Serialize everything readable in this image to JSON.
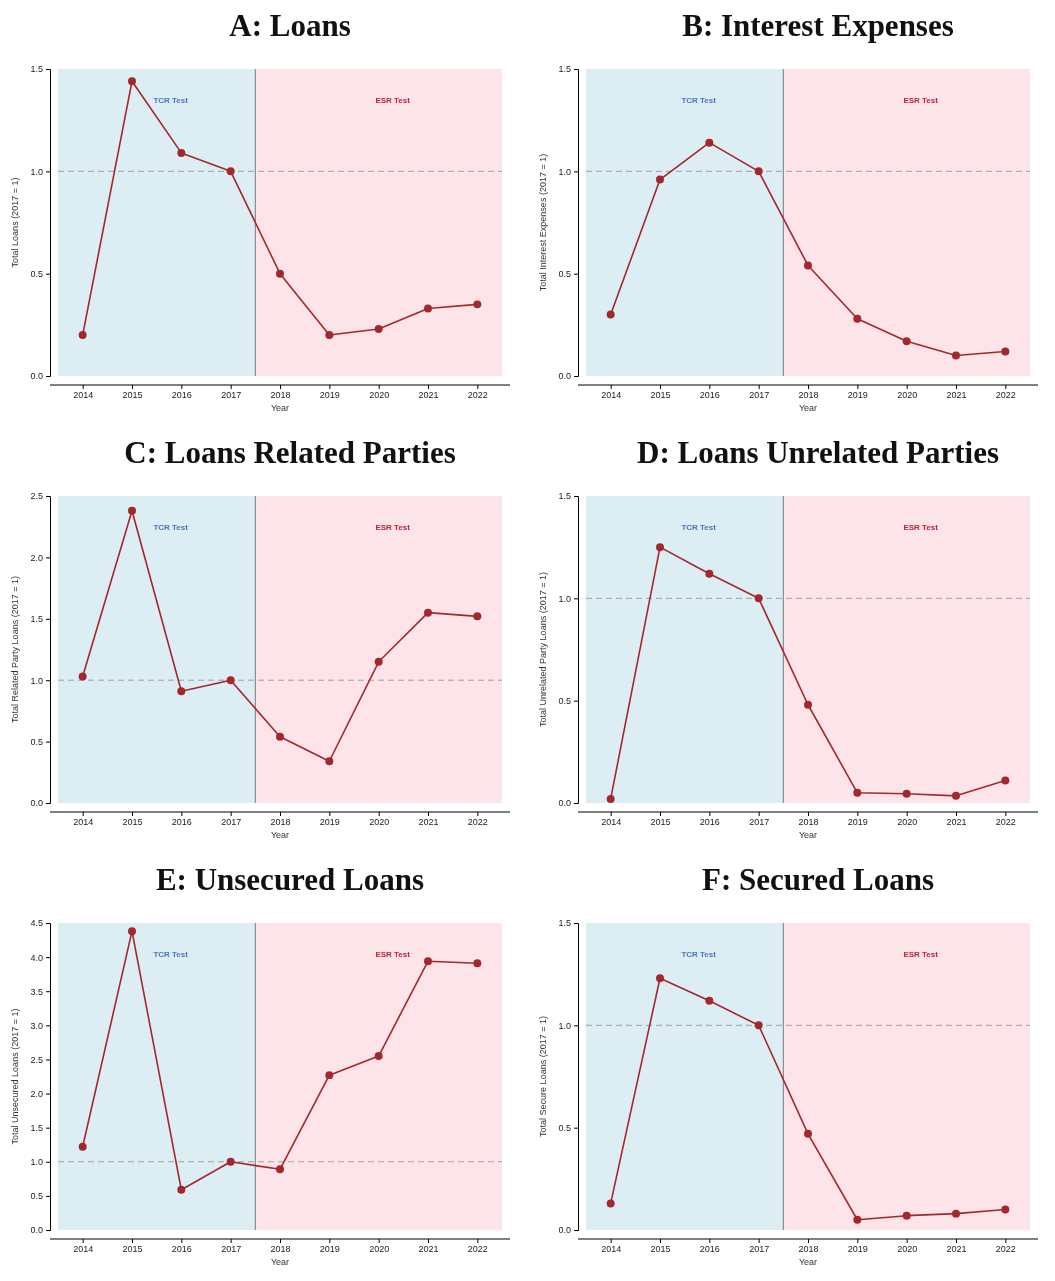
{
  "chart_data": [
    {
      "type": "line",
      "title": "A: Loans",
      "xlabel": "Year",
      "ylabel": "Total Loans (2017 = 1)",
      "x": [
        2014,
        2015,
        2016,
        2017,
        2018,
        2019,
        2020,
        2021,
        2022
      ],
      "xlim": [
        2013.5,
        2022.5
      ],
      "xticks": [
        2014,
        2015,
        2016,
        2017,
        2018,
        2019,
        2020,
        2021,
        2022
      ],
      "ylim": [
        0,
        1.5
      ],
      "yticks": [
        {
          "value": 0,
          "label": "0.0"
        },
        0.5,
        {
          "value": 1,
          "label": "1.0"
        },
        1.5
      ],
      "marker": "circle",
      "line_style": "solid",
      "series": [
        {
          "color": "#a3282c",
          "values": [
            0.2,
            1.44,
            1.09,
            1.0,
            0.5,
            0.2,
            0.23,
            0.33,
            0.35
          ]
        }
      ],
      "bands": [
        {
          "axis": "x",
          "from": 2013.5,
          "to": 2017.5,
          "label": "TCR Test",
          "color": "#ddedf4"
        },
        {
          "axis": "x",
          "from": 2017.5,
          "to": 2022.5,
          "label": "ESR Test",
          "color": "#fde4e9"
        }
      ],
      "ref_lines": [
        {
          "axis": "y",
          "value": 1,
          "color": "#a0a0a0",
          "line_style": "dashed"
        },
        {
          "axis": "x",
          "value": 2017.5,
          "color": "#7a7a7a",
          "line_style": "solid"
        }
      ]
    },
    {
      "type": "line",
      "title": "B: Interest Expenses",
      "xlabel": "Year",
      "ylabel": "Total Interest Expenses (2017 = 1)",
      "x": [
        2014,
        2015,
        2016,
        2017,
        2018,
        2019,
        2020,
        2021,
        2022
      ],
      "xlim": [
        2013.5,
        2022.5
      ],
      "xticks": [
        2014,
        2015,
        2016,
        2017,
        2018,
        2019,
        2020,
        2021,
        2022
      ],
      "ylim": [
        0,
        1.5
      ],
      "yticks": [
        {
          "value": 0,
          "label": "0.0"
        },
        0.5,
        {
          "value": 1,
          "label": "1.0"
        },
        1.5
      ],
      "marker": "circle",
      "line_style": "solid",
      "series": [
        {
          "color": "#a3282c",
          "values": [
            0.3,
            0.96,
            1.14,
            1.0,
            0.54,
            0.28,
            0.17,
            0.1,
            0.12
          ]
        }
      ],
      "bands": [
        {
          "axis": "x",
          "from": 2013.5,
          "to": 2017.5,
          "label": "TCR Test",
          "color": "#ddedf4"
        },
        {
          "axis": "x",
          "from": 2017.5,
          "to": 2022.5,
          "label": "ESR Test",
          "color": "#fde4e9"
        }
      ],
      "ref_lines": [
        {
          "axis": "y",
          "value": 1,
          "color": "#a0a0a0",
          "line_style": "dashed"
        },
        {
          "axis": "x",
          "value": 2017.5,
          "color": "#7a7a7a",
          "line_style": "solid"
        }
      ]
    },
    {
      "type": "line",
      "title": "C: Loans Related Parties",
      "xlabel": "Year",
      "ylabel": "Total Related Party Loans (2017 = 1)",
      "x": [
        2014,
        2015,
        2016,
        2017,
        2018,
        2019,
        2020,
        2021,
        2022
      ],
      "xlim": [
        2013.5,
        2022.5
      ],
      "xticks": [
        2014,
        2015,
        2016,
        2017,
        2018,
        2019,
        2020,
        2021,
        2022
      ],
      "ylim": [
        0,
        2.5
      ],
      "yticks": [
        {
          "value": 0,
          "label": "0.0"
        },
        0.5,
        {
          "value": 1,
          "label": "1.0"
        },
        1.5,
        {
          "value": 2,
          "label": "2.0"
        },
        2.5
      ],
      "marker": "circle",
      "line_style": "solid",
      "series": [
        {
          "color": "#a3282c",
          "values": [
            1.03,
            2.38,
            0.91,
            1.0,
            0.54,
            0.34,
            1.15,
            1.55,
            1.52
          ]
        }
      ],
      "bands": [
        {
          "axis": "x",
          "from": 2013.5,
          "to": 2017.5,
          "label": "TCR Test",
          "color": "#ddedf4"
        },
        {
          "axis": "x",
          "from": 2017.5,
          "to": 2022.5,
          "label": "ESR Test",
          "color": "#fde4e9"
        }
      ],
      "ref_lines": [
        {
          "axis": "y",
          "value": 1,
          "color": "#a0a0a0",
          "line_style": "dashed"
        },
        {
          "axis": "x",
          "value": 2017.5,
          "color": "#7a7a7a",
          "line_style": "solid"
        }
      ]
    },
    {
      "type": "line",
      "title": "D: Loans Unrelated Parties",
      "xlabel": "Year",
      "ylabel": "Total Unrelated Party Loans (2017 = 1)",
      "x": [
        2014,
        2015,
        2016,
        2017,
        2018,
        2019,
        2020,
        2021,
        2022
      ],
      "xlim": [
        2013.5,
        2022.5
      ],
      "xticks": [
        2014,
        2015,
        2016,
        2017,
        2018,
        2019,
        2020,
        2021,
        2022
      ],
      "ylim": [
        0,
        1.5
      ],
      "yticks": [
        {
          "value": 0,
          "label": "0.0"
        },
        0.5,
        {
          "value": 1,
          "label": "1.0"
        },
        1.5
      ],
      "marker": "circle",
      "line_style": "solid",
      "series": [
        {
          "color": "#a3282c",
          "values": [
            0.02,
            1.25,
            1.12,
            1.0,
            0.48,
            0.05,
            0.045,
            0.035,
            0.11
          ]
        }
      ],
      "bands": [
        {
          "axis": "x",
          "from": 2013.5,
          "to": 2017.5,
          "label": "TCR Test",
          "color": "#ddedf4"
        },
        {
          "axis": "x",
          "from": 2017.5,
          "to": 2022.5,
          "label": "ESR Test",
          "color": "#fde4e9"
        }
      ],
      "ref_lines": [
        {
          "axis": "y",
          "value": 1,
          "color": "#a0a0a0",
          "line_style": "dashed"
        },
        {
          "axis": "x",
          "value": 2017.5,
          "color": "#7a7a7a",
          "line_style": "solid"
        }
      ]
    },
    {
      "type": "line",
      "title": "E: Unsecured Loans",
      "xlabel": "Year",
      "ylabel": "Total Unsecured Loans (2017 = 1)",
      "x": [
        2014,
        2015,
        2016,
        2017,
        2018,
        2019,
        2020,
        2021,
        2022
      ],
      "xlim": [
        2013.5,
        2022.5
      ],
      "xticks": [
        2014,
        2015,
        2016,
        2017,
        2018,
        2019,
        2020,
        2021,
        2022
      ],
      "ylim": [
        0,
        4.5
      ],
      "yticks": [
        {
          "value": 0,
          "label": "0.0"
        },
        0.5,
        {
          "value": 1,
          "label": "1.0"
        },
        1.5,
        {
          "value": 2,
          "label": "2.0"
        },
        2.5,
        {
          "value": 3,
          "label": "3.0"
        },
        3.5,
        {
          "value": 4,
          "label": "4.0"
        },
        4.5
      ],
      "marker": "circle",
      "line_style": "solid",
      "series": [
        {
          "color": "#a3282c",
          "values": [
            1.22,
            4.38,
            0.59,
            1.0,
            0.89,
            2.27,
            2.55,
            3.94,
            3.91
          ]
        }
      ],
      "bands": [
        {
          "axis": "x",
          "from": 2013.5,
          "to": 2017.5,
          "label": "TCR Test",
          "color": "#ddedf4"
        },
        {
          "axis": "x",
          "from": 2017.5,
          "to": 2022.5,
          "label": "ESR Test",
          "color": "#fde4e9"
        }
      ],
      "ref_lines": [
        {
          "axis": "y",
          "value": 1,
          "color": "#a0a0a0",
          "line_style": "dashed"
        },
        {
          "axis": "x",
          "value": 2017.5,
          "color": "#7a7a7a",
          "line_style": "solid"
        }
      ]
    },
    {
      "type": "line",
      "title": "F: Secured Loans",
      "xlabel": "Year",
      "ylabel": "Total Secure Loans (2017 = 1)",
      "x": [
        2014,
        2015,
        2016,
        2017,
        2018,
        2019,
        2020,
        2021,
        2022
      ],
      "xlim": [
        2013.5,
        2022.5
      ],
      "xticks": [
        2014,
        2015,
        2016,
        2017,
        2018,
        2019,
        2020,
        2021,
        2022
      ],
      "ylim": [
        0,
        1.5
      ],
      "yticks": [
        {
          "value": 0,
          "label": "0.0"
        },
        0.5,
        {
          "value": 1,
          "label": "1.0"
        },
        1.5
      ],
      "marker": "circle",
      "line_style": "solid",
      "series": [
        {
          "color": "#a3282c",
          "values": [
            0.13,
            1.23,
            1.12,
            1.0,
            0.47,
            0.05,
            0.07,
            0.08,
            0.1
          ]
        }
      ],
      "bands": [
        {
          "axis": "x",
          "from": 2013.5,
          "to": 2017.5,
          "label": "TCR Test",
          "color": "#ddedf4"
        },
        {
          "axis": "x",
          "from": 2017.5,
          "to": 2022.5,
          "label": "ESR Test",
          "color": "#fde4e9"
        }
      ],
      "ref_lines": [
        {
          "axis": "y",
          "value": 1,
          "color": "#a0a0a0",
          "line_style": "dashed"
        },
        {
          "axis": "x",
          "value": 2017.5,
          "color": "#7a7a7a",
          "line_style": "solid"
        }
      ]
    }
  ]
}
